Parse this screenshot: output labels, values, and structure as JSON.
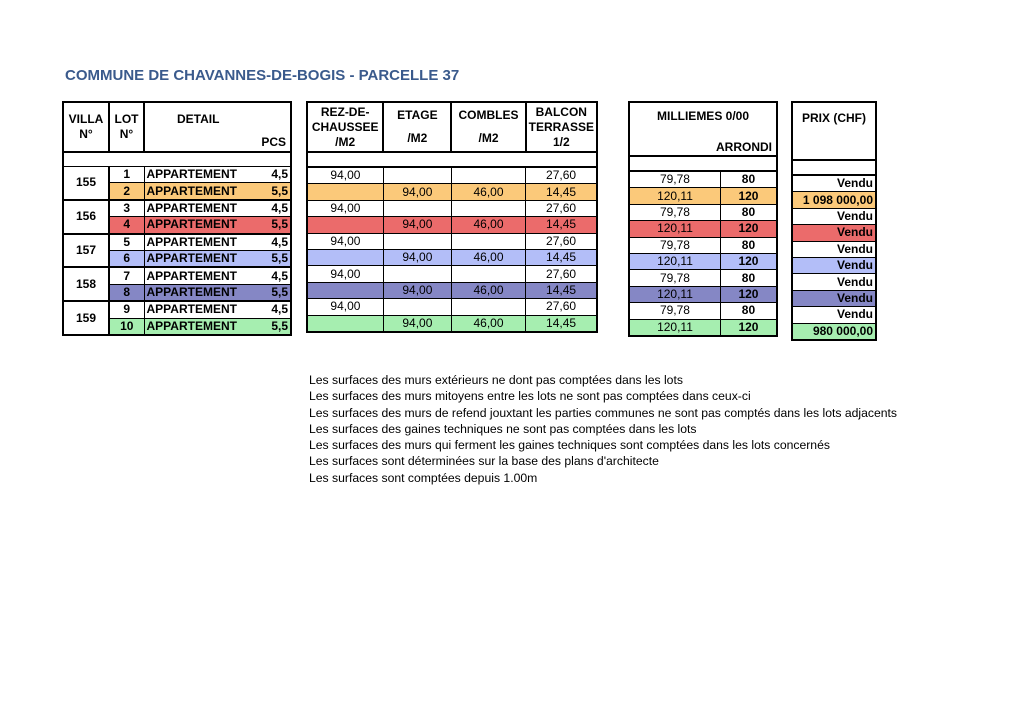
{
  "title": "COMMUNE DE CHAVANNES-DE-BOGIS - PARCELLE 37",
  "headers": {
    "villa": "VILLA N°",
    "lot": "LOT N°",
    "detail": "DETAIL",
    "pcs": "PCS",
    "rez": "REZ-DE-CHAUSSEE",
    "rez_unit": "/M2",
    "etage": "ETAGE",
    "etage_unit": "/M2",
    "combles": "COMBLES",
    "combles_unit": "/M2",
    "balcon": "BALCON TERRASSE",
    "balcon_unit": "1/2",
    "milliemes": "MILLIEMES 0/00",
    "arrondi": "ARRONDI",
    "prix": "PRIX (CHF)"
  },
  "colors": {
    "villa155": "#fbc97a",
    "villa156": "#eb6b6b",
    "villa157": "#b3bef8",
    "villa158": "#8587c5",
    "villa159": "#a6eeb0"
  },
  "villas": [
    {
      "villa": "155",
      "color": "#fbc97a",
      "lots": [
        {
          "lot": "1",
          "detail": "APPARTEMENT",
          "pcs": "4,5",
          "rez": "94,00",
          "etage": "",
          "combles": "",
          "balcon": "27,60",
          "milliemes": "79,78",
          "arrondi": "80",
          "prix": "Vendu"
        },
        {
          "lot": "2",
          "detail": "APPARTEMENT",
          "pcs": "5,5",
          "rez": "",
          "etage": "94,00",
          "combles": "46,00",
          "balcon": "14,45",
          "milliemes": "120,11",
          "arrondi": "120",
          "prix": "1 098 000,00"
        }
      ]
    },
    {
      "villa": "156",
      "color": "#eb6b6b",
      "lots": [
        {
          "lot": "3",
          "detail": "APPARTEMENT",
          "pcs": "4,5",
          "rez": "94,00",
          "etage": "",
          "combles": "",
          "balcon": "27,60",
          "milliemes": "79,78",
          "arrondi": "80",
          "prix": "Vendu"
        },
        {
          "lot": "4",
          "detail": "APPARTEMENT",
          "pcs": "5,5",
          "rez": "",
          "etage": "94,00",
          "combles": "46,00",
          "balcon": "14,45",
          "milliemes": "120,11",
          "arrondi": "120",
          "prix": "Vendu"
        }
      ]
    },
    {
      "villa": "157",
      "color": "#b3bef8",
      "lots": [
        {
          "lot": "5",
          "detail": "APPARTEMENT",
          "pcs": "4,5",
          "rez": "94,00",
          "etage": "",
          "combles": "",
          "balcon": "27,60",
          "milliemes": "79,78",
          "arrondi": "80",
          "prix": "Vendu"
        },
        {
          "lot": "6",
          "detail": "APPARTEMENT",
          "pcs": "5,5",
          "rez": "",
          "etage": "94,00",
          "combles": "46,00",
          "balcon": "14,45",
          "milliemes": "120,11",
          "arrondi": "120",
          "prix": "Vendu"
        }
      ]
    },
    {
      "villa": "158",
      "color": "#8587c5",
      "lots": [
        {
          "lot": "7",
          "detail": "APPARTEMENT",
          "pcs": "4,5",
          "rez": "94,00",
          "etage": "",
          "combles": "",
          "balcon": "27,60",
          "milliemes": "79,78",
          "arrondi": "80",
          "prix": "Vendu"
        },
        {
          "lot": "8",
          "detail": "APPARTEMENT",
          "pcs": "5,5",
          "rez": "",
          "etage": "94,00",
          "combles": "46,00",
          "balcon": "14,45",
          "milliemes": "120,11",
          "arrondi": "120",
          "prix": "Vendu"
        }
      ]
    },
    {
      "villa": "159",
      "color": "#a6eeb0",
      "lots": [
        {
          "lot": "9",
          "detail": "APPARTEMENT",
          "pcs": "4,5",
          "rez": "94,00",
          "etage": "",
          "combles": "",
          "balcon": "27,60",
          "milliemes": "79,78",
          "arrondi": "80",
          "prix": "Vendu"
        },
        {
          "lot": "10",
          "detail": "APPARTEMENT",
          "pcs": "5,5",
          "rez": "",
          "etage": "94,00",
          "combles": "46,00",
          "balcon": "14,45",
          "milliemes": "120,11",
          "arrondi": "120",
          "prix": "980 000,00"
        }
      ]
    }
  ],
  "notes": [
    "Les surfaces des murs extérieurs ne dont pas comptées dans les lots",
    "Les surfaces des murs mitoyens entre les lots ne sont pas comptées dans ceux-ci",
    "Les surfaces des murs de refend jouxtant les parties communes ne sont pas comptés dans les lots adjacents",
    "Les surfaces des gaines techniques ne sont pas comptées dans les lots",
    "Les surfaces des murs qui ferment les gaines techniques sont comptées dans les lots concernés",
    "Les surfaces sont déterminées sur la base des plans d'architecte",
    "Les surfaces sont comptées depuis 1.00m"
  ]
}
